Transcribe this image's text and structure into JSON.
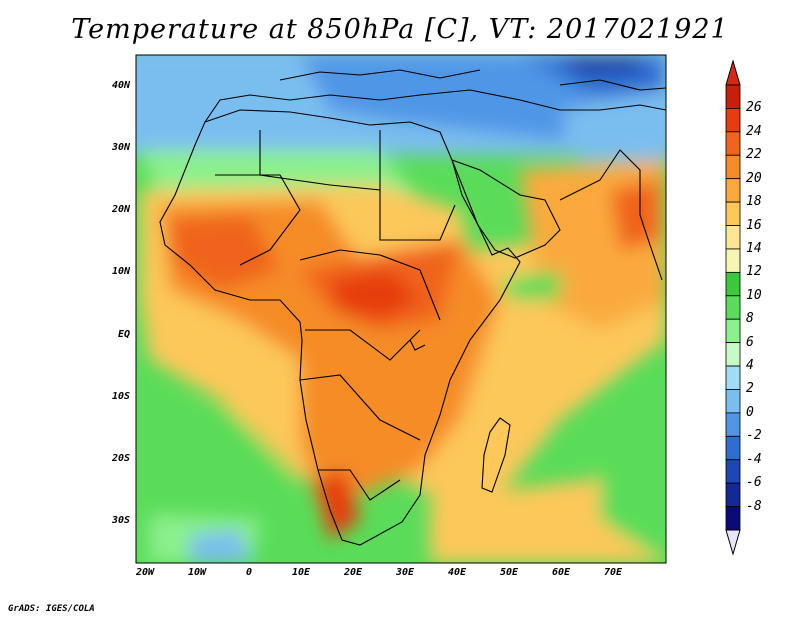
{
  "title": "Temperature at 850hPa [C], VT: 2017021921",
  "credit": "GrADS: IGES/COLA",
  "lat_labels": [
    "40N",
    "30N",
    "20N",
    "10N",
    "EQ",
    "10S",
    "20S",
    "30S"
  ],
  "lon_labels": [
    "20W",
    "10W",
    "0",
    "10E",
    "20E",
    "30E",
    "40E",
    "50E",
    "60E",
    "70E"
  ],
  "colorbar": {
    "labels": [
      "26",
      "24",
      "22",
      "20",
      "18",
      "16",
      "14",
      "12",
      "10",
      "8",
      "6",
      "4",
      "2",
      "0",
      "-2",
      "-4",
      "-6",
      "-8"
    ],
    "colors": [
      "#c81e0a",
      "#e63c0f",
      "#f0641e",
      "#f58c28",
      "#faaa3c",
      "#fcc85a",
      "#fde696",
      "#f5f5b4",
      "#3cc83c",
      "#5adc5a",
      "#8cf08c",
      "#c8fac8",
      "#a0dcf5",
      "#7abef0",
      "#5096e6",
      "#2e6ed2",
      "#1e46b4",
      "#142896",
      "#0a0a78"
    ],
    "over_color": "#d72814",
    "under_color": "#e6e6fa"
  },
  "map": {
    "projection": "latlon",
    "lon_range": [
      -22,
      80
    ],
    "lat_range": [
      -36,
      45
    ],
    "field": "temperature_850hPa_C"
  }
}
